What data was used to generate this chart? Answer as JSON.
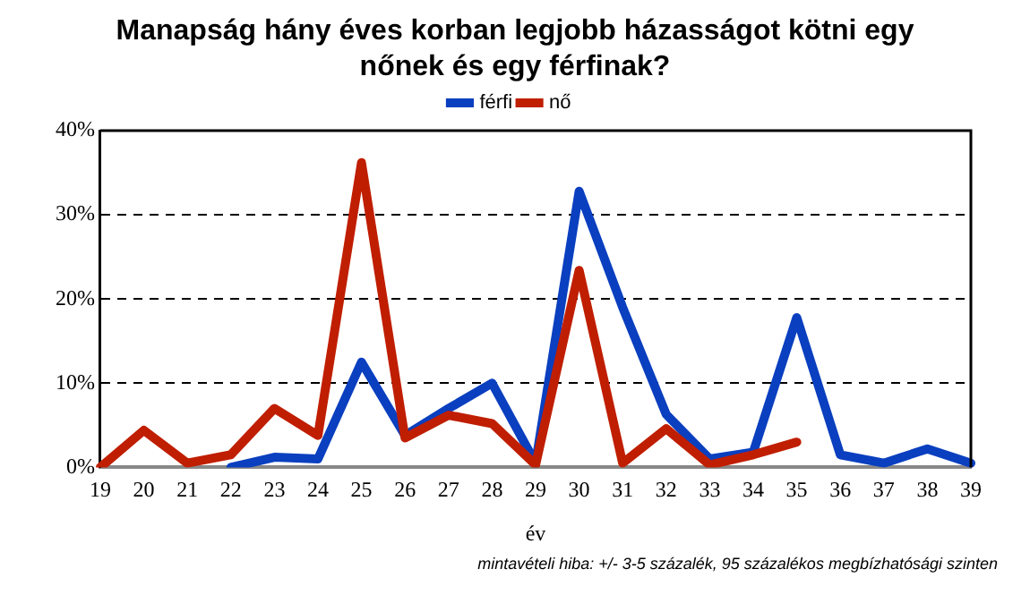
{
  "chart_data": {
    "type": "line",
    "title": "Manapság hány éves korban legjobb házasságot kötni egy nőnek és egy férfinak?",
    "xlabel": "év",
    "categories": [
      "19",
      "20",
      "21",
      "22",
      "23",
      "24",
      "25",
      "26",
      "27",
      "28",
      "29",
      "30",
      "31",
      "32",
      "33",
      "34",
      "35",
      "36",
      "37",
      "38",
      "39"
    ],
    "series": [
      {
        "name": "férfi",
        "color": "#0a3fbf",
        "values": [
          null,
          null,
          null,
          0,
          1.2,
          1,
          12.5,
          3.8,
          7,
          10,
          0.5,
          32.8,
          19,
          6.3,
          1,
          1.8,
          17.8,
          1.5,
          0.5,
          2.2,
          0.5
        ]
      },
      {
        "name": "nő",
        "color": "#c01e00",
        "values": [
          0,
          4.4,
          0.5,
          1.5,
          7,
          3.8,
          36.2,
          3.5,
          6.2,
          5.2,
          0.3,
          23.4,
          0.5,
          4.6,
          0.3,
          1.5,
          3,
          null,
          null,
          null,
          null
        ]
      }
    ],
    "ylim": [
      0,
      40
    ],
    "yticks": [
      {
        "value": 0,
        "label": "0%"
      },
      {
        "value": 10,
        "label": "10%"
      },
      {
        "value": 20,
        "label": "20%"
      },
      {
        "value": 30,
        "label": "30%"
      },
      {
        "value": 40,
        "label": "40%"
      }
    ],
    "grid": "y",
    "legend": "top",
    "marker": "none",
    "line_style": "solid",
    "annotations": [
      "mintavételi hiba: +/- 3-5 százalék, 95 százalékos megbízhatósági szinten"
    ]
  }
}
